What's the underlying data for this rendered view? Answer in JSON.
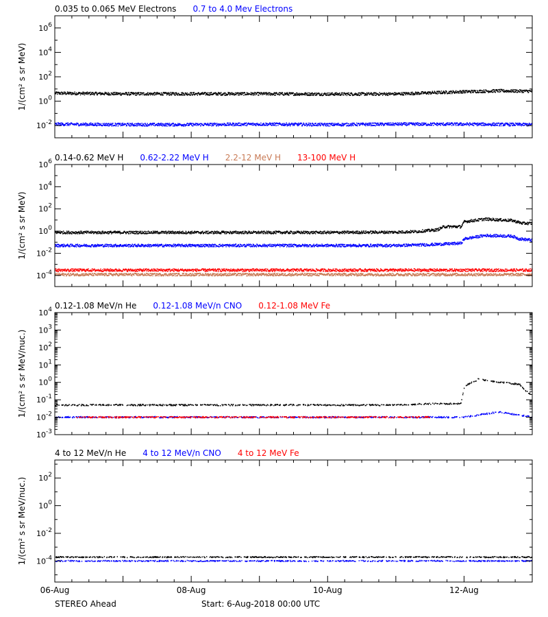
{
  "colors": {
    "black": "#000000",
    "blue": "#0000ff",
    "brown": "#c87a55",
    "red": "#ff0000"
  },
  "footer": {
    "left": "STEREO Ahead",
    "start": "Start:  6-Aug-2018 00:00 UTC"
  },
  "x_axis": {
    "start_date": "2018-08-06",
    "end_date": "2018-08-13",
    "tick_labels": [
      "06-Aug",
      "08-Aug",
      "10-Aug",
      "12-Aug"
    ],
    "tick_days": [
      0,
      2,
      4,
      6
    ]
  },
  "chart_data": [
    {
      "type": "scatter",
      "ylabel": "1/(cm² s sr MeV)",
      "ylog": true,
      "ylim": [
        0.001,
        10000000
      ],
      "y_ticks": [
        0.01,
        1,
        100,
        10000,
        1000000
      ],
      "y_tick_labels": [
        {
          "base": "10",
          "exp": "-2"
        },
        {
          "base": "10",
          "exp": "0"
        },
        {
          "base": "10",
          "exp": "2"
        },
        {
          "base": "10",
          "exp": "4"
        },
        {
          "base": "10",
          "exp": "6"
        }
      ],
      "series": [
        {
          "name": "0.035 to 0.065 MeV Electrons",
          "color": "#000000",
          "x_day": [
            0,
            1,
            2,
            3,
            4,
            5,
            6,
            6.5,
            7
          ],
          "y": [
            4.5,
            4.0,
            4.0,
            4.0,
            3.8,
            3.9,
            6.0,
            7.0,
            6.5
          ]
        },
        {
          "name": "0.7 to 4.0 Mev Electrons",
          "color": "#0000ff",
          "x_day": [
            0,
            1,
            2,
            3,
            4,
            5,
            6,
            7
          ],
          "y": [
            0.013,
            0.012,
            0.012,
            0.013,
            0.012,
            0.013,
            0.013,
            0.012
          ]
        }
      ]
    },
    {
      "type": "scatter",
      "ylabel": "1/(cm² s sr MeV)",
      "ylog": true,
      "ylim": [
        1e-05,
        1000000
      ],
      "y_ticks": [
        0.0001,
        0.01,
        1,
        100,
        10000,
        1000000
      ],
      "y_tick_labels": [
        {
          "base": "10",
          "exp": "-4"
        },
        {
          "base": "10",
          "exp": "-2"
        },
        {
          "base": "10",
          "exp": "0"
        },
        {
          "base": "10",
          "exp": "2"
        },
        {
          "base": "10",
          "exp": "4"
        },
        {
          "base": "10",
          "exp": "6"
        }
      ],
      "series": [
        {
          "name": "0.14-0.62 MeV H",
          "color": "#000000",
          "x_day": [
            0,
            1,
            2,
            3,
            4,
            5,
            5.3,
            5.6,
            5.7,
            5.95,
            6.0,
            6.3,
            6.7,
            6.85,
            7
          ],
          "y": [
            0.75,
            0.75,
            0.75,
            0.75,
            0.75,
            0.8,
            0.9,
            1.3,
            2.5,
            2.5,
            7,
            12,
            9,
            5,
            5
          ]
        },
        {
          "name": "0.62-2.22 MeV H",
          "color": "#0000ff",
          "x_day": [
            0,
            1,
            2,
            3,
            4,
            5,
            5.5,
            5.95,
            6.0,
            6.3,
            6.7,
            6.8,
            7
          ],
          "y": [
            0.05,
            0.05,
            0.05,
            0.05,
            0.05,
            0.05,
            0.06,
            0.08,
            0.2,
            0.4,
            0.35,
            0.2,
            0.15
          ]
        },
        {
          "name": "2.2-12 MeV H",
          "color": "#c87a55",
          "x_day": [
            0,
            7
          ],
          "y": [
            0.00012,
            0.00012
          ]
        },
        {
          "name": "13-100 MeV H",
          "color": "#ff0000",
          "x_day": [
            0,
            7
          ],
          "y": [
            0.0003,
            0.0003
          ]
        }
      ]
    },
    {
      "type": "scatter",
      "ylabel": "1/(cm² s sr MeV/nuc.)",
      "ylog": true,
      "ylim": [
        0.001,
        10000
      ],
      "y_ticks": [
        0.001,
        0.01,
        0.1,
        1,
        10,
        100,
        1000,
        10000
      ],
      "y_tick_labels": [
        {
          "base": "10",
          "exp": "-3"
        },
        {
          "base": "10",
          "exp": "-2"
        },
        {
          "base": "10",
          "exp": "-1"
        },
        {
          "base": "10",
          "exp": "0"
        },
        {
          "base": "10",
          "exp": "1"
        },
        {
          "base": "10",
          "exp": "2"
        },
        {
          "base": "10",
          "exp": "3"
        },
        {
          "base": "10",
          "exp": "4"
        }
      ],
      "series": [
        {
          "name": "0.12-1.08 MeV/n He",
          "color": "#000000",
          "x_day": [
            0,
            1,
            2,
            3,
            4,
            5,
            5.5,
            5.95,
            6.0,
            6.2,
            6.5,
            6.8,
            6.9,
            7
          ],
          "y": [
            0.05,
            0.05,
            0.05,
            0.05,
            0.05,
            0.05,
            0.06,
            0.06,
            0.6,
            1.5,
            1.0,
            0.8,
            0.3,
            0.2
          ]
        },
        {
          "name": "0.12-1.08 MeV/n CNO",
          "color": "#0000ff",
          "x_day": [
            0,
            6,
            6.5,
            7
          ],
          "y": [
            0.01,
            0.01,
            0.02,
            0.01
          ]
        },
        {
          "name": "0.12-1.08 MeV Fe",
          "color": "#ff0000",
          "x_day": [
            0.3,
            5.5
          ],
          "y": [
            0.01,
            0.01
          ]
        }
      ]
    },
    {
      "type": "scatter",
      "ylabel": "1/(cm² s sr MeV/nuc.)",
      "ylog": true,
      "ylim": [
        3e-06,
        2000
      ],
      "y_ticks": [
        0.0001,
        0.01,
        1,
        100
      ],
      "y_tick_labels": [
        {
          "base": "10",
          "exp": "-4"
        },
        {
          "base": "10",
          "exp": "-2"
        },
        {
          "base": "10",
          "exp": "0"
        },
        {
          "base": "10",
          "exp": "2"
        }
      ],
      "series": [
        {
          "name": "4 to 12 MeV/n He",
          "color": "#000000",
          "x_day": [
            0,
            7
          ],
          "y": [
            0.00019,
            0.00019
          ]
        },
        {
          "name": "4 to 12 MeV/n CNO",
          "color": "#0000ff",
          "x_day": [
            0,
            7
          ],
          "y": [
            0.0001,
            0.0001
          ]
        },
        {
          "name": "4 to 12 MeV Fe",
          "color": "#ff0000",
          "x_day": [],
          "y": []
        }
      ]
    }
  ]
}
